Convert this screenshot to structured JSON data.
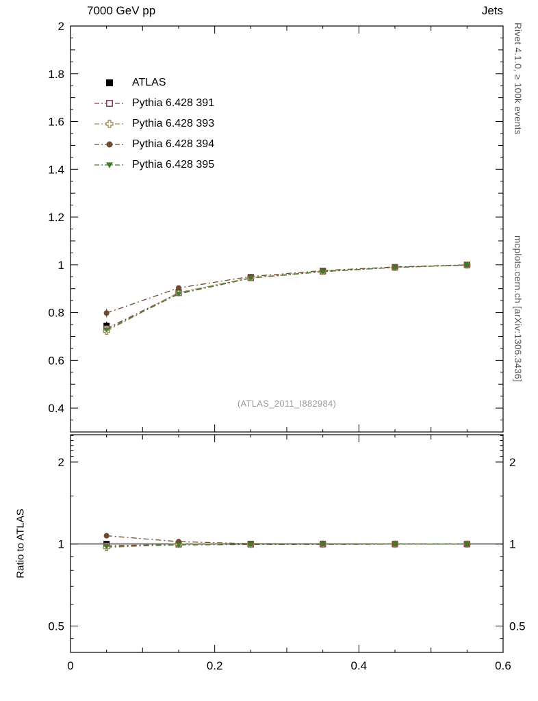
{
  "header": {
    "left": "7000 GeV pp",
    "right": "Jets"
  },
  "side_text": {
    "top": "Rivet 4.1.0, ≥ 100k events",
    "bottom": "mcplots.cern.ch [arXiv:1306.3436]"
  },
  "watermark": "(ATLAS_2011_I882984)",
  "ratio_label": "Ratio to ATLAS",
  "chart_data": {
    "type": "line",
    "title": "",
    "xlabel": "",
    "ylabel": "",
    "grid": false,
    "legend_position": "top-left",
    "x": [
      0.05,
      0.15,
      0.25,
      0.35,
      0.45,
      0.55
    ],
    "series": [
      {
        "name": "ATLAS",
        "marker": "filled-square",
        "color": "#000000",
        "line": "none",
        "values": [
          0.744,
          0.885,
          0.948,
          0.974,
          0.99,
          1.0
        ],
        "errors": [
          0.018,
          0.009,
          0.006,
          0.005,
          0.004,
          0.003
        ]
      },
      {
        "name": "Pythia 6.428 391",
        "marker": "open-square",
        "color": "#8a3b55",
        "line": "dash-dot",
        "values": [
          0.733,
          0.882,
          0.945,
          0.972,
          0.989,
          0.999
        ],
        "errors": [
          0.012,
          0.007,
          0.005,
          0.004,
          0.003,
          0.003
        ]
      },
      {
        "name": "Pythia 6.428 393",
        "marker": "open-cross",
        "color": "#9a8c50",
        "line": "dash-dot",
        "values": [
          0.722,
          0.884,
          0.946,
          0.973,
          0.989,
          0.999
        ],
        "errors": [
          0.015,
          0.008,
          0.005,
          0.004,
          0.003,
          0.003
        ]
      },
      {
        "name": "Pythia 6.428 394",
        "marker": "filled-circle",
        "color": "#6d4b2f",
        "line": "dash-dot",
        "values": [
          0.798,
          0.903,
          0.951,
          0.976,
          0.991,
          1.0
        ],
        "errors": [
          0.018,
          0.008,
          0.005,
          0.004,
          0.003,
          0.003
        ]
      },
      {
        "name": "Pythia 6.428 395",
        "marker": "filled-triangle-down",
        "color": "#417a30",
        "line": "dash-dot",
        "values": [
          0.728,
          0.878,
          0.944,
          0.971,
          0.989,
          0.999
        ],
        "errors": [
          0.02,
          0.008,
          0.005,
          0.004,
          0.003,
          0.003
        ]
      }
    ],
    "xlim": [
      0,
      0.6
    ],
    "xticks": [
      0,
      0.2,
      0.4,
      0.6
    ],
    "ylim": [
      0.3,
      2.0
    ],
    "yticks": [
      0.4,
      0.6,
      0.8,
      1,
      1.2,
      1.4,
      1.6,
      1.8,
      2
    ],
    "ratio": {
      "scale": "log",
      "ylim": [
        0.4,
        2.52
      ],
      "yticks": [
        0.5,
        1,
        2
      ],
      "minor_ticks": [
        0.45,
        0.6,
        0.7,
        0.8,
        0.9,
        1.5,
        2.1,
        2.2,
        2.3,
        2.4,
        2.5
      ],
      "reference": 1
    }
  }
}
